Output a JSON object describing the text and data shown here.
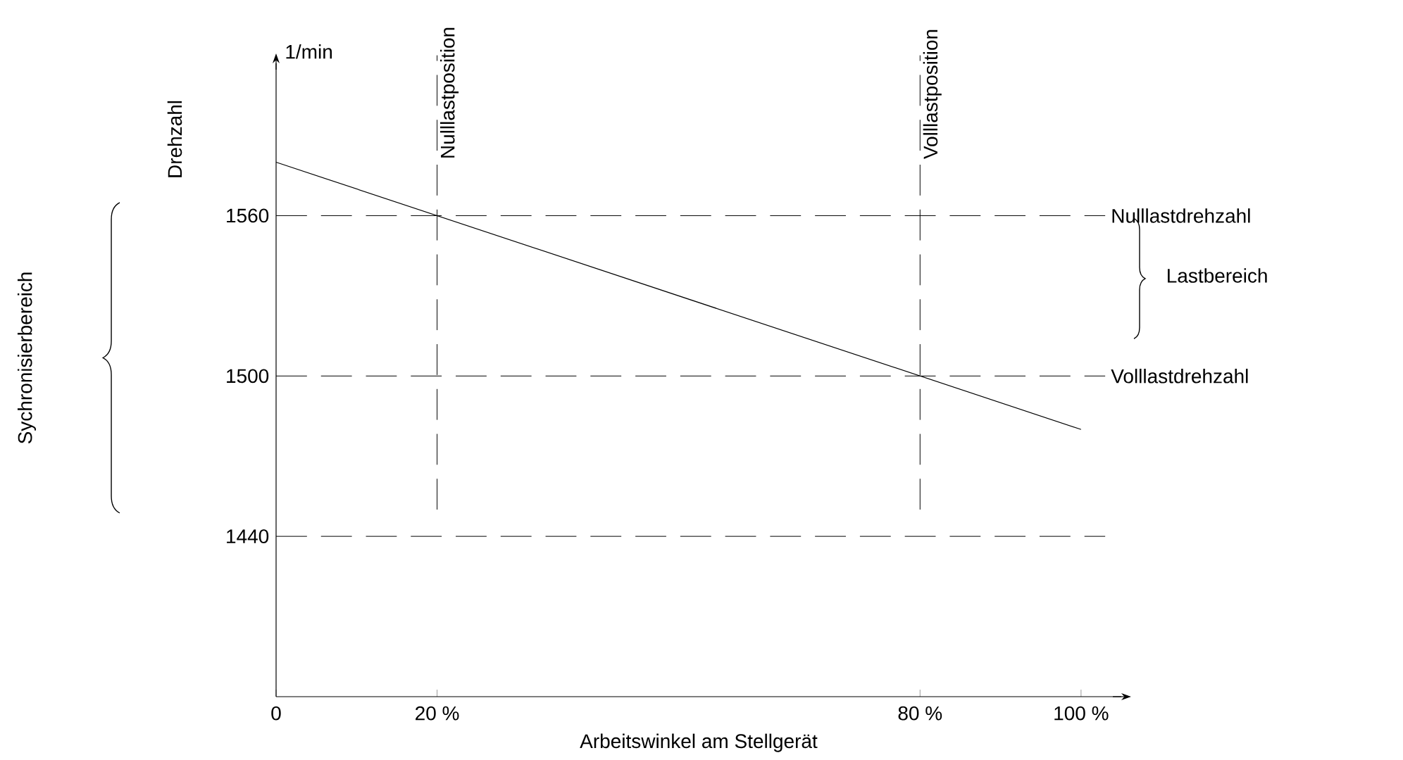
{
  "chart_data": {
    "type": "line",
    "xlabel": "Arbeitswinkel am Stellgerät",
    "ylabel": "Drehzahl",
    "annotations": [
      "Lastbereich",
      "Sychronisierbereich",
      "1/min"
    ],
    "series": [
      {
        "color": "#000000",
        "x": [
          0,
          100
        ],
        "values": [
          1580,
          1480
        ]
      }
    ],
    "xlim": [
      0,
      105
    ],
    "ylim": [
      1380,
      1617
    ],
    "xticks": [
      0,
      {
        "value": 20,
        "label": "20 %"
      },
      {
        "value": 80,
        "label": "80 %"
      },
      {
        "value": 100,
        "label": "100 %"
      }
    ],
    "yticks": [
      1440,
      1500,
      1560
    ],
    "ref_lines": [
      {
        "axis": "y",
        "value": 1560,
        "label": "Nulllastdrehzahl"
      },
      {
        "axis": "y",
        "value": 1500,
        "label": "Volllastdrehzahl"
      },
      {
        "axis": "y",
        "value": 1440,
        "label": null
      },
      {
        "axis": "x",
        "value": 20,
        "label": "Nulllastposition"
      },
      {
        "axis": "x",
        "value": 80,
        "label": "Volllastposition"
      }
    ],
    "grid": false
  }
}
